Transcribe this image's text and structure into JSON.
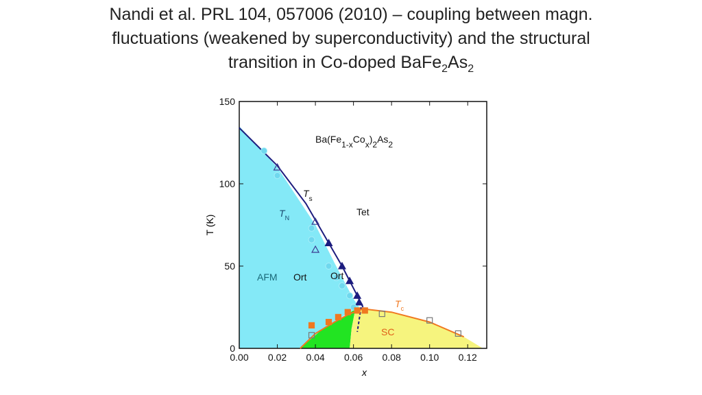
{
  "chart_data": {
    "type": "phase-diagram",
    "title": [
      [
        "Nandi et al. PRL 104, 057006 (2010) – coupling between magn."
      ],
      [
        "fluctuations (weakened by superconductivity) and the structural"
      ],
      [
        "transition in Co-doped BaFe",
        "2",
        "As",
        "2"
      ]
    ],
    "xlabel": "x",
    "ylabel": "T (K)",
    "xlim": [
      0,
      0.13
    ],
    "ylim": [
      0,
      150
    ],
    "xticks": [
      {
        "value": 0,
        "label": "0.00"
      },
      {
        "value": 0.02,
        "label": "0.02"
      },
      {
        "value": 0.04,
        "label": "0.04"
      },
      {
        "value": 0.06,
        "label": "0.06"
      },
      {
        "value": 0.08,
        "label": "0.08"
      },
      {
        "value": 0.1,
        "label": "0.10"
      },
      {
        "value": 0.12,
        "label": "0.12"
      }
    ],
    "yticks": [
      0,
      50,
      100,
      150
    ],
    "regions": [
      {
        "color": "#84e9f7",
        "x": [
          0,
          0,
          0.02,
          0.04,
          0.05,
          0.06,
          0.063,
          0.061,
          0.045,
          0.032
        ],
        "y": [
          0,
          135,
          110,
          75,
          52,
          30,
          25,
          24,
          13,
          0
        ]
      },
      {
        "color": "#22e422",
        "x": [
          0.032,
          0.045,
          0.056,
          0.061,
          0.059,
          0.058
        ],
        "y": [
          0,
          13,
          20,
          24,
          12,
          0
        ]
      },
      {
        "color": "#f6f47e",
        "x": [
          0.058,
          0.059,
          0.061,
          0.065,
          0.08,
          0.1,
          0.118,
          0.128
        ],
        "y": [
          0,
          12,
          24,
          24,
          22,
          16,
          7,
          0
        ]
      }
    ],
    "series": [
      {
        "mode": "line",
        "color": "#1c1c7e",
        "x": [
          0,
          0.02,
          0.035,
          0.047,
          0.054,
          0.062,
          0.065
        ],
        "values": [
          134,
          111,
          88,
          64,
          50,
          32,
          25
        ]
      },
      {
        "mode": "dashed",
        "color": "#1c1c7e",
        "x": [
          0.064,
          0.062
        ],
        "values": [
          25,
          10
        ]
      },
      {
        "mode": "line",
        "color": "#f07820",
        "x": [
          0.032,
          0.04,
          0.05,
          0.058,
          0.065,
          0.08,
          0.1,
          0.118
        ],
        "values": [
          0,
          9,
          16,
          21,
          24,
          22,
          16,
          7
        ]
      },
      {
        "mode": "triangle",
        "filled": true,
        "color": "#1c1c7e",
        "x": [
          0.047,
          0.054,
          0.058,
          0.062,
          0.063
        ],
        "values": [
          64,
          50,
          41,
          32,
          28
        ]
      },
      {
        "mode": "triangle",
        "filled": false,
        "color": "#3a3a90",
        "x": [
          0.02,
          0.04,
          0.04
        ],
        "values": [
          110,
          77,
          60
        ]
      },
      {
        "mode": "circle",
        "filled": true,
        "color": "#6fd8ee",
        "x": [
          0.013,
          0.02,
          0.038,
          0.038,
          0.047,
          0.051,
          0.054,
          0.058,
          0.06
        ],
        "values": [
          120,
          105,
          73,
          66,
          50,
          43,
          38,
          32,
          25
        ]
      },
      {
        "mode": "square",
        "filled": true,
        "color": "#f07820",
        "x": [
          0.038,
          0.047,
          0.052,
          0.057,
          0.062,
          0.066
        ],
        "values": [
          14,
          16,
          19,
          22,
          23,
          23
        ]
      },
      {
        "mode": "square",
        "filled": false,
        "color": "#777777",
        "x": [
          0.038,
          0.075,
          0.1,
          0.115
        ],
        "values": [
          8,
          21,
          17,
          9
        ]
      }
    ],
    "annotations": [
      [
        "Ba(Fe",
        "1-x",
        "Co",
        "x",
        ")",
        "2",
        "As",
        "2"
      ],
      [
        "T",
        "s"
      ],
      [
        "T",
        "N"
      ],
      [
        "Tet"
      ],
      [
        "AFM"
      ],
      [
        "Ort"
      ],
      [
        "Ort"
      ],
      [
        "T",
        "c"
      ],
      [
        "SC"
      ]
    ],
    "annotation_colors": [
      "#111111",
      "#111111",
      "#1a4a70",
      "#111111",
      "#1a6878",
      "#111111",
      "#111111",
      "#f07820",
      "#e0601a"
    ]
  }
}
